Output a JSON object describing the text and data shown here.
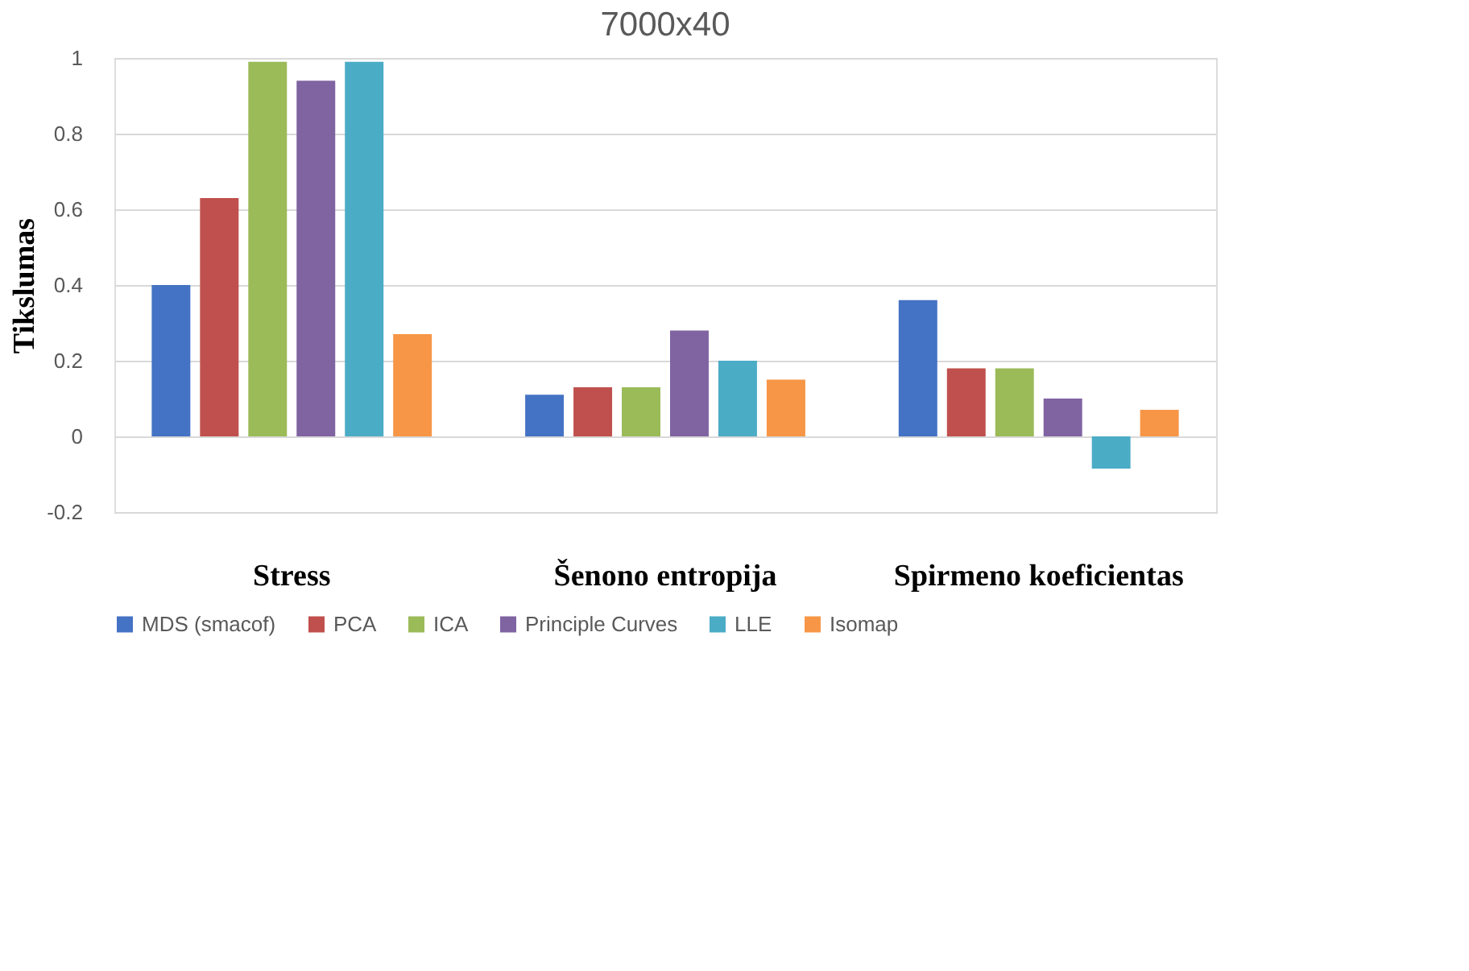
{
  "chart_data": {
    "type": "bar",
    "title": "7000x40",
    "ylabel": "Tikslumas",
    "categories": [
      "Stress",
      "Šenono entropija",
      "Spirmeno koeficientas"
    ],
    "series": [
      {
        "name": "MDS (smacof)",
        "color": "#4472c4",
        "values": [
          0.4,
          0.11,
          0.36
        ]
      },
      {
        "name": "PCA",
        "color": "#c0504d",
        "values": [
          0.63,
          0.13,
          0.18
        ]
      },
      {
        "name": "ICA",
        "color": "#9bbb59",
        "values": [
          0.99,
          0.13,
          0.18
        ]
      },
      {
        "name": "Principle Curves",
        "color": "#8064a2",
        "values": [
          0.94,
          0.28,
          0.1
        ]
      },
      {
        "name": "LLE",
        "color": "#4bacc6",
        "values": [
          0.99,
          0.2,
          -0.085
        ]
      },
      {
        "name": "Isomap",
        "color": "#f79646",
        "values": [
          0.27,
          0.15,
          0.07
        ]
      }
    ],
    "ylim": [
      -0.2,
      1.0
    ],
    "yticks": [
      -0.2,
      0,
      0.2,
      0.4,
      0.6,
      0.8,
      1
    ],
    "grid": "y",
    "legend": "bottom"
  }
}
